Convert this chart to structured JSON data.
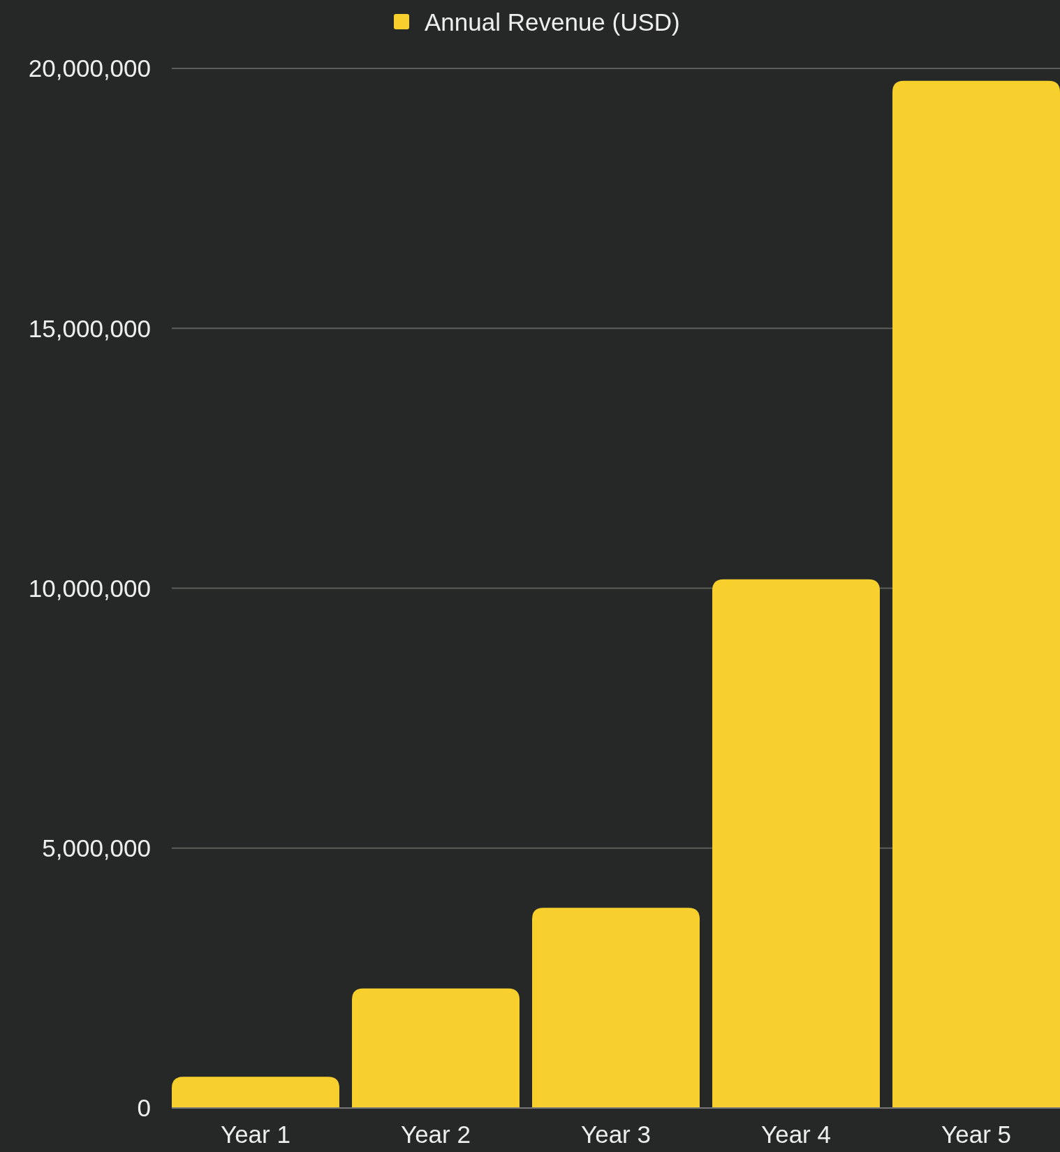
{
  "chart_data": {
    "type": "bar",
    "categories": [
      "Year 1",
      "Year 2",
      "Year 3",
      "Year 4",
      "Year 5"
    ],
    "series": [
      {
        "name": "Annual Revenue (USD)",
        "color": "#f8d02e",
        "values": [
          600000,
          2300000,
          3850000,
          10170000,
          19760000
        ]
      }
    ],
    "ylim": [
      0,
      20000000
    ],
    "yticks": [
      {
        "value": 0,
        "label": "0"
      },
      {
        "value": 5000000,
        "label": "5,000,000"
      },
      {
        "value": 10000000,
        "label": "10,000,000"
      },
      {
        "value": 15000000,
        "label": "15,000,000"
      },
      {
        "value": 20000000,
        "label": "20,000,000"
      }
    ],
    "grid": "y",
    "legend": "top"
  }
}
